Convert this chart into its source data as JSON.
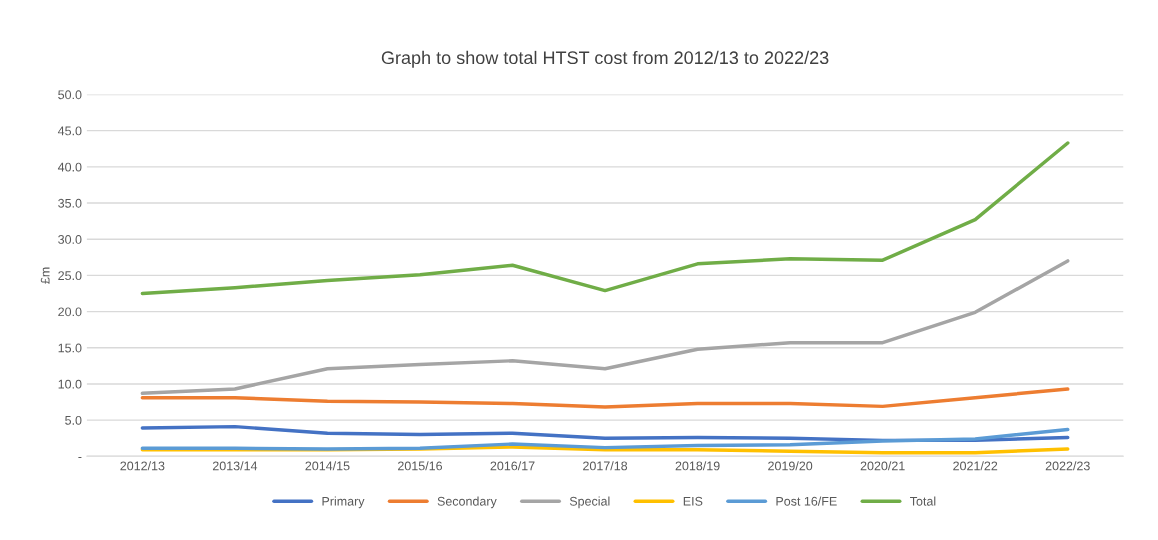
{
  "chart_data": {
    "type": "line",
    "title": "Graph to show total HTST cost from 2012/13 to 2022/23",
    "ylabel": "£m",
    "categories": [
      "2012/13",
      "2013/14",
      "2014/15",
      "2015/16",
      "2016/17",
      "2017/18",
      "2018/19",
      "2019/20",
      "2020/21",
      "2021/22",
      "2022/23"
    ],
    "series": [
      {
        "name": "Primary",
        "color": "#4472c4",
        "values": [
          3.9,
          4.1,
          3.2,
          3.0,
          3.2,
          2.5,
          2.6,
          2.5,
          2.2,
          2.2,
          2.6
        ]
      },
      {
        "name": "Secondary",
        "color": "#ed7d31",
        "values": [
          8.1,
          8.1,
          7.6,
          7.5,
          7.3,
          6.8,
          7.3,
          7.3,
          6.9,
          8.1,
          9.3
        ]
      },
      {
        "name": "Special",
        "color": "#a5a5a5",
        "values": [
          8.7,
          9.3,
          12.1,
          12.7,
          13.2,
          12.1,
          14.8,
          15.7,
          15.7,
          19.9,
          27.0
        ]
      },
      {
        "name": "EIS",
        "color": "#ffc000",
        "values": [
          0.9,
          0.9,
          0.9,
          1.0,
          1.3,
          0.9,
          0.9,
          0.7,
          0.5,
          0.5,
          1.0
        ]
      },
      {
        "name": "Post 16/FE",
        "color": "#5b9bd5",
        "values": [
          1.1,
          1.1,
          1.0,
          1.1,
          1.7,
          1.2,
          1.5,
          1.6,
          2.1,
          2.4,
          3.7
        ]
      },
      {
        "name": "Total",
        "color": "#70ad47",
        "values": [
          22.5,
          23.3,
          24.3,
          25.1,
          26.4,
          22.9,
          26.6,
          27.3,
          27.1,
          32.7,
          43.3
        ]
      }
    ],
    "ylim": [
      0,
      50
    ],
    "yticks": [
      {
        "value": 0,
        "label": "-"
      },
      {
        "value": 5,
        "label": "5.0"
      },
      {
        "value": 10,
        "label": "10.0"
      },
      {
        "value": 15,
        "label": "15.0"
      },
      {
        "value": 20,
        "label": "20.0"
      },
      {
        "value": 25,
        "label": "25.0"
      },
      {
        "value": 30,
        "label": "30.0"
      },
      {
        "value": 35,
        "label": "35.0"
      },
      {
        "value": 40,
        "label": "40.0"
      },
      {
        "value": 45,
        "label": "45.0"
      },
      {
        "value": 50,
        "label": "50.0"
      }
    ],
    "grid": "y",
    "legend": "bottom",
    "marker": "none",
    "line_style": "solid"
  }
}
